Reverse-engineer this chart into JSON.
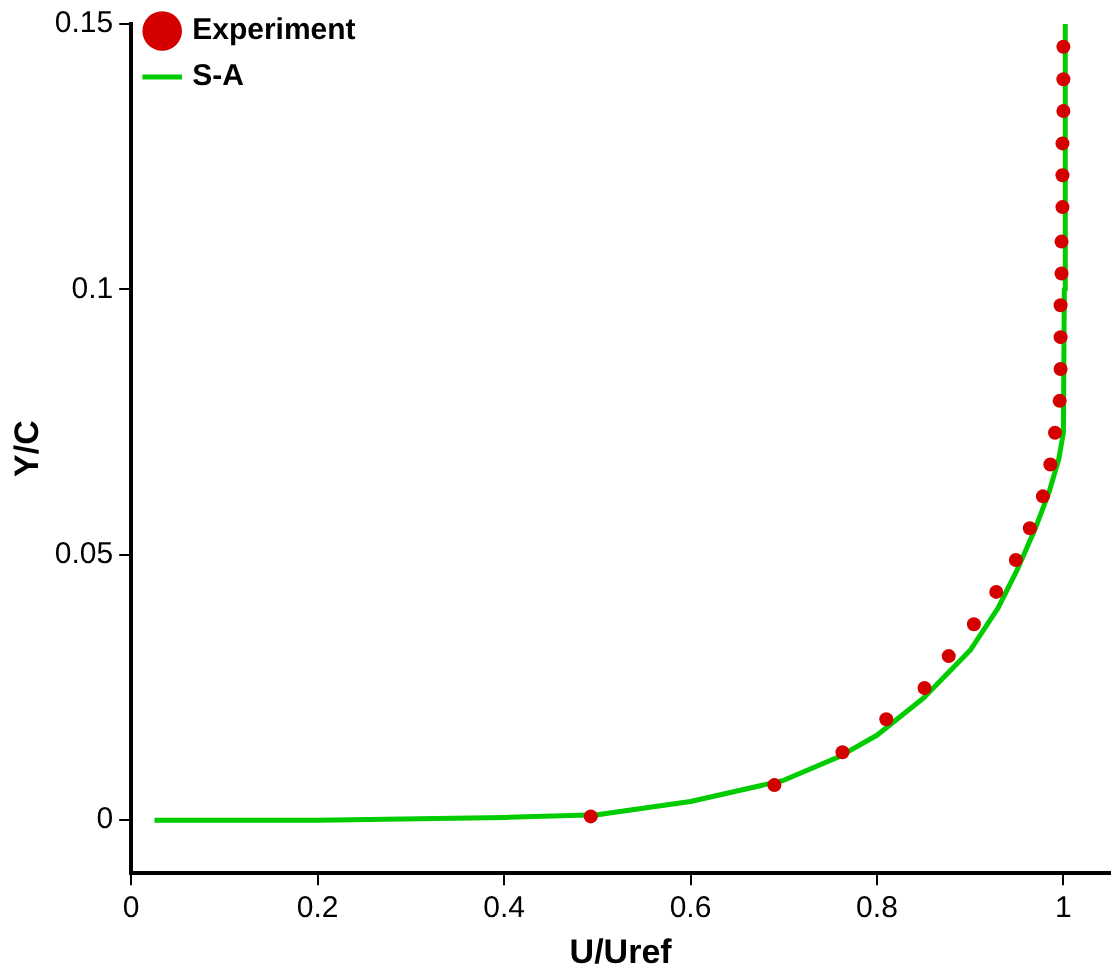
{
  "chart_data": {
    "type": "scatter",
    "xlabel": "U/Uref",
    "ylabel": "Y/C",
    "xlim": [
      0,
      1.05
    ],
    "ylim": [
      -0.01,
      0.15
    ],
    "xticks": [
      0,
      0.2,
      0.4,
      0.6,
      0.8,
      1
    ],
    "yticks": [
      0,
      0.05,
      0.1,
      0.15
    ],
    "grid": false,
    "legend": "top left",
    "series": [
      {
        "name": "Experiment",
        "marker": "circle",
        "color": "#d40000",
        "x": [
          0.493,
          0.69,
          0.763,
          0.81,
          0.851,
          0.877,
          0.904,
          0.928,
          0.949,
          0.964,
          0.978,
          0.986,
          0.991,
          0.996,
          0.997,
          0.997,
          0.997,
          0.998,
          0.998,
          0.999,
          0.999,
          0.999,
          1.0,
          1.0,
          1.0
        ],
        "values": [
          0.0007,
          0.0066,
          0.0128,
          0.019,
          0.0249,
          0.0309,
          0.0369,
          0.043,
          0.049,
          0.055,
          0.061,
          0.067,
          0.073,
          0.079,
          0.085,
          0.091,
          0.097,
          0.103,
          0.109,
          0.1155,
          0.1215,
          0.1275,
          0.1336,
          0.1396,
          0.1457
        ]
      },
      {
        "name": "S-A",
        "type": "line",
        "marker": "none",
        "line_style": "solid",
        "color": "#00cc00",
        "x": [
          0.025,
          0.2,
          0.4,
          0.5,
          0.6,
          0.7,
          0.76,
          0.8,
          0.85,
          0.9,
          0.93,
          0.95,
          0.97,
          0.985,
          0.995,
          1.0,
          1.001,
          1.002
        ],
        "values": [
          0,
          0,
          0.0005,
          0.001,
          0.0035,
          0.0075,
          0.012,
          0.016,
          0.023,
          0.032,
          0.04,
          0.047,
          0.055,
          0.062,
          0.068,
          0.073,
          0.1,
          0.15
        ]
      }
    ]
  }
}
